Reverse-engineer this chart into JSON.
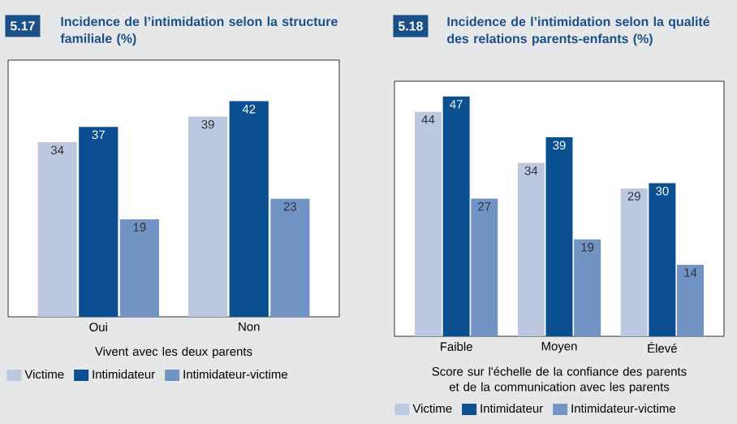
{
  "chart_data": [
    {
      "type": "bar",
      "title": "Incidence de l’intimidation selon la structure familiale (%)",
      "annotations": [
        "5.17"
      ],
      "xlabel": "Vivent avec les deux parents",
      "categories": [
        "Oui",
        "Non"
      ],
      "series": [
        {
          "name": "Victime",
          "color": "#bcc8e0",
          "values": [
            34,
            39
          ]
        },
        {
          "name": "Intimidateur",
          "color": "#0a4f8f",
          "values": [
            37,
            42
          ]
        },
        {
          "name": "Intimidateur-victime",
          "color": "#7294c4",
          "values": [
            19,
            23
          ]
        }
      ],
      "ylim": [
        0,
        50
      ],
      "tick_labels": "x",
      "data_labels": true,
      "legend": "bottom"
    },
    {
      "type": "bar",
      "title": "Incidence de l’intimidation selon la qualité des relations parents-enfants (%)",
      "annotations": [
        "5.18"
      ],
      "xlabel": "Score sur l'échelle de la confiance des parents et de la communication avec les parents",
      "categories": [
        "Faible",
        "Moyen",
        "Élevé"
      ],
      "series": [
        {
          "name": "Victime",
          "color": "#bcc8e0",
          "values": [
            44,
            34,
            29
          ]
        },
        {
          "name": "Intimidateur",
          "color": "#0a4f8f",
          "values": [
            47,
            39,
            30
          ]
        },
        {
          "name": "Intimidateur-victime",
          "color": "#7294c4",
          "values": [
            27,
            19,
            14
          ]
        }
      ],
      "ylim": [
        0,
        50
      ],
      "tick_labels": "x",
      "data_labels": true,
      "legend": "bottom"
    }
  ]
}
